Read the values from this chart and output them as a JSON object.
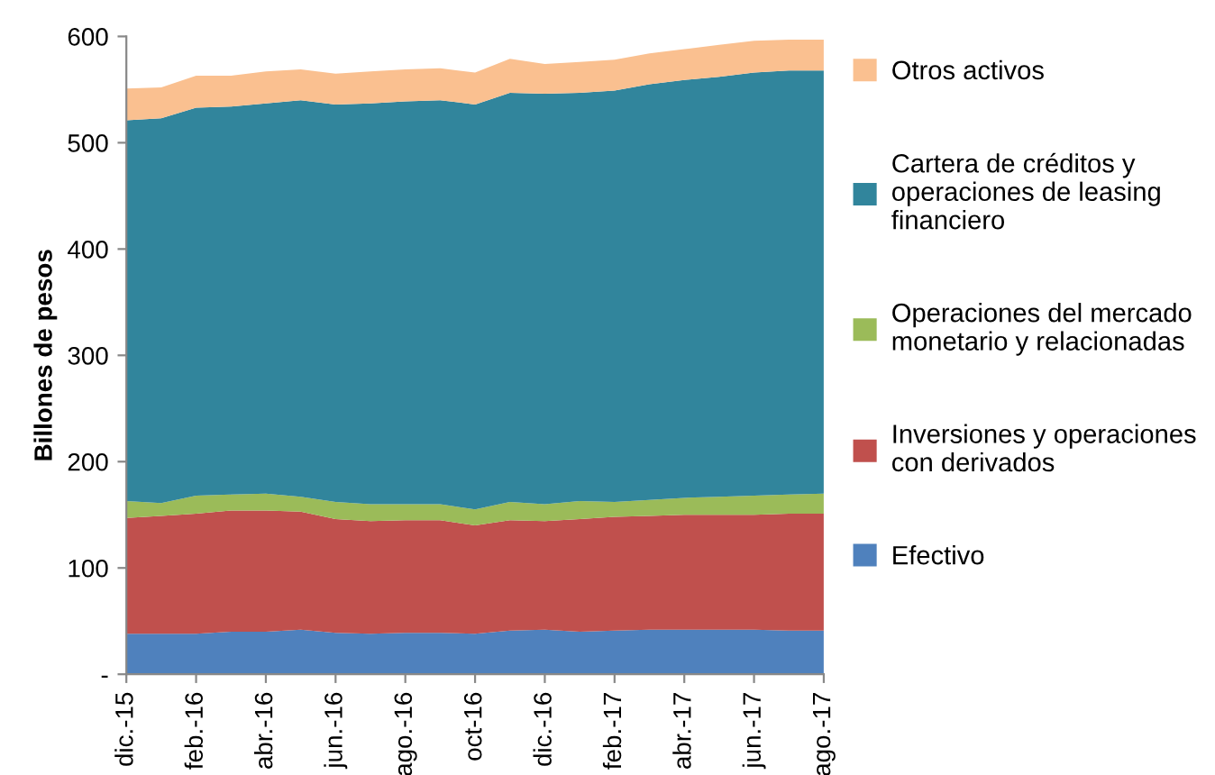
{
  "chart_data": {
    "type": "area",
    "stacked": true,
    "ylabel": "Billones de pesos",
    "legend": "right",
    "grid": false,
    "categories": [
      "dic.-15",
      null,
      "feb.-16",
      null,
      "abr.-16",
      null,
      "jun.-16",
      null,
      "ago.-16",
      null,
      "oct-16",
      null,
      "dic.-16",
      null,
      "feb.-17",
      null,
      "abr.-17",
      null,
      "jun.-17",
      null,
      "ago.-17"
    ],
    "ylim": [
      0,
      600
    ],
    "yticks": [
      {
        "value": 0,
        "label": "-"
      },
      100,
      200,
      300,
      400,
      500,
      600
    ],
    "series": [
      {
        "name": "Efectivo",
        "color": "#4f81bd",
        "values": [
          38,
          38,
          38,
          40,
          40,
          42,
          39,
          38,
          39,
          39,
          38,
          41,
          42,
          40,
          41,
          42,
          42,
          42,
          42,
          41,
          41
        ]
      },
      {
        "name": "Inversiones y operaciones con derivados",
        "color": "#c0504d",
        "values": [
          109,
          111,
          113,
          114,
          114,
          111,
          107,
          106,
          106,
          106,
          102,
          104,
          102,
          106,
          107,
          107,
          108,
          108,
          108,
          110,
          110
        ]
      },
      {
        "name": "Operaciones del mercado monetario y relacionadas",
        "color": "#9bbb59",
        "values": [
          16,
          12,
          17,
          15,
          16,
          14,
          16,
          16,
          15,
          15,
          15,
          17,
          16,
          17,
          14,
          15,
          16,
          17,
          18,
          18,
          19
        ]
      },
      {
        "name": "Cartera de créditos y operaciones de leasing financiero",
        "color": "#31859c",
        "values": [
          358,
          362,
          365,
          365,
          367,
          373,
          374,
          377,
          379,
          380,
          381,
          385,
          386,
          384,
          387,
          391,
          393,
          395,
          398,
          399,
          398
        ]
      },
      {
        "name": "Otros activos",
        "color": "#fac090",
        "values": [
          30,
          29,
          30,
          29,
          30,
          29,
          29,
          30,
          30,
          30,
          30,
          32,
          28,
          29,
          29,
          29,
          29,
          30,
          30,
          29,
          29
        ]
      }
    ]
  }
}
